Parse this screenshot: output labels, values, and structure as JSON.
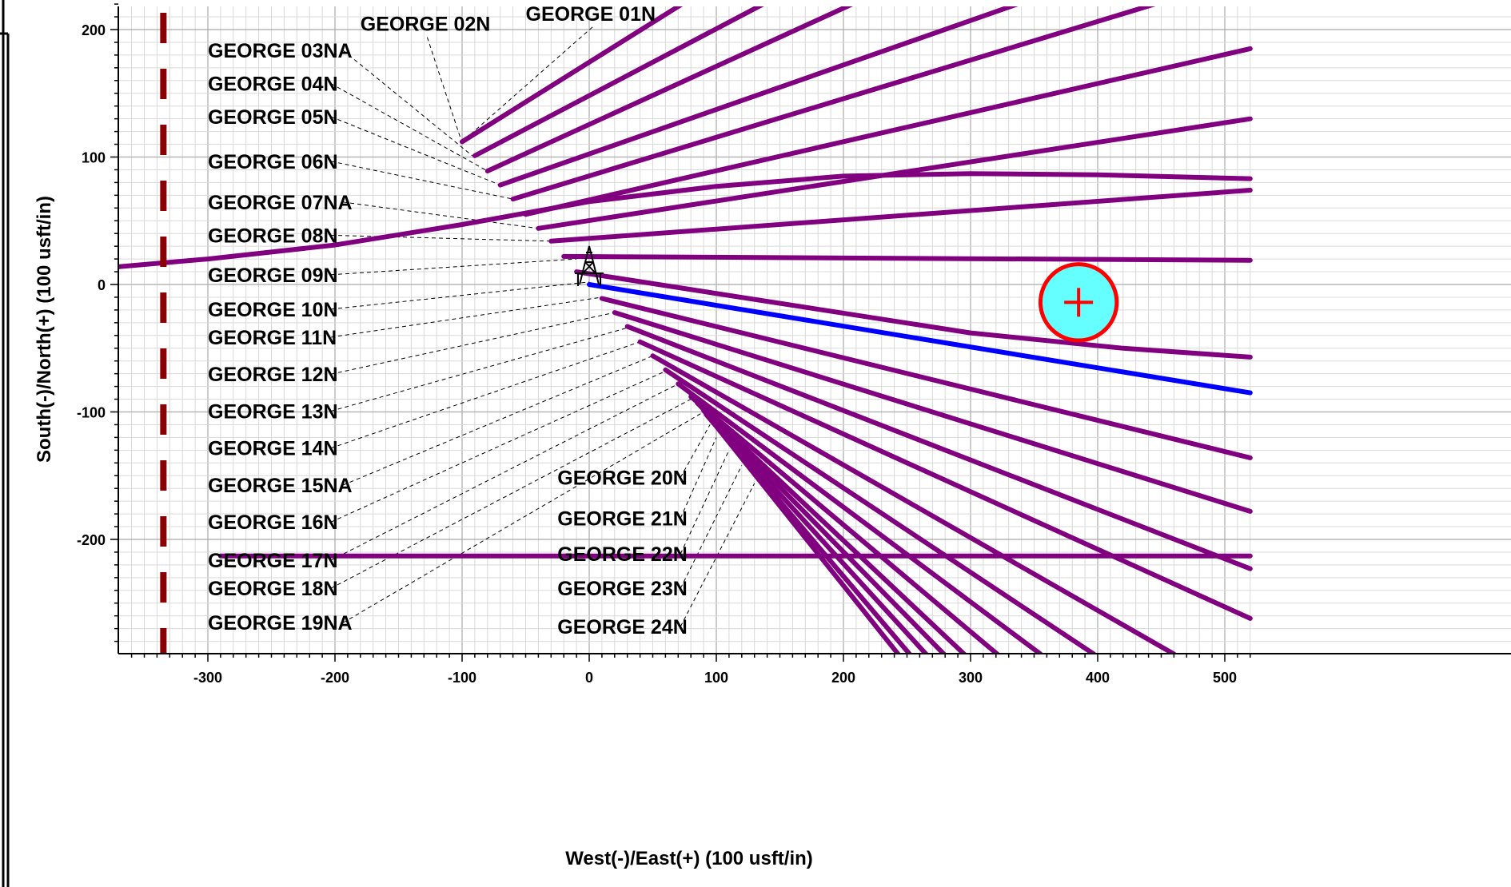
{
  "chart_data": {
    "type": "line",
    "title": "",
    "xlabel": "West(-)/East(+) (100 usft/in)",
    "ylabel": "South(-)/North(+) (100 usft/in)",
    "xlim": [
      -370,
      520
    ],
    "ylim": [
      -290,
      220
    ],
    "x_ticks": [
      "-300",
      "-200",
      "-100",
      "0",
      "100",
      "200",
      "300",
      "400",
      "500"
    ],
    "y_ticks": [
      "200",
      "100",
      "0",
      "-100",
      "-200"
    ],
    "grid": true,
    "colors": {
      "offset_well": "#800080",
      "subject_well": "#0000ff",
      "vertical_well": "#8b0000",
      "target_fill": "#66ffff",
      "target_stroke": "#ff0000"
    },
    "icons": {
      "surface_location": "well-derrick-icon",
      "target": "target-circle-icon"
    },
    "subject_well": {
      "points": [
        [
          0,
          0
        ],
        [
          520,
          -85
        ]
      ]
    },
    "target": {
      "x": 385,
      "y": -14,
      "radius": 30
    },
    "vertical_wells_x": -335,
    "wells": [
      {
        "label": "GEORGE 01N",
        "label_xy": [
          -50,
          207
        ],
        "leader_end": [
          -100,
          112
        ]
      },
      {
        "label": "GEORGE 02N",
        "label_xy": [
          -180,
          199
        ],
        "leader_end": [
          -100,
          111
        ]
      },
      {
        "label": "GEORGE 03NA",
        "label_xy": [
          -300,
          178
        ],
        "leader_end": [
          -92,
          101
        ]
      },
      {
        "label": "GEORGE 04N",
        "label_xy": [
          -300,
          152
        ],
        "leader_end": [
          -80,
          89
        ]
      },
      {
        "label": "GEORGE 05N",
        "label_xy": [
          -300,
          126
        ],
        "leader_end": [
          -70,
          78
        ]
      },
      {
        "label": "GEORGE 06N",
        "label_xy": [
          -300,
          91
        ],
        "leader_end": [
          -60,
          67
        ]
      },
      {
        "label": "GEORGE 07NA",
        "label_xy": [
          -300,
          59
        ],
        "leader_end": [
          -40,
          44
        ]
      },
      {
        "label": "GEORGE 08N",
        "label_xy": [
          -300,
          33
        ],
        "leader_end": [
          -30,
          34
        ]
      },
      {
        "label": "GEORGE 09N",
        "label_xy": [
          -300,
          2
        ],
        "leader_end": [
          -10,
          20
        ]
      },
      {
        "label": "GEORGE 10N",
        "label_xy": [
          -300,
          -25
        ],
        "leader_end": [
          0,
          2
        ]
      },
      {
        "label": "GEORGE 11N",
        "label_xy": [
          -300,
          -47
        ],
        "leader_end": [
          10,
          -10
        ]
      },
      {
        "label": "GEORGE 12N",
        "label_xy": [
          -300,
          -76
        ],
        "leader_end": [
          20,
          -22
        ]
      },
      {
        "label": "GEORGE 13N",
        "label_xy": [
          -300,
          -105
        ],
        "leader_end": [
          30,
          -34
        ]
      },
      {
        "label": "GEORGE 14N",
        "label_xy": [
          -300,
          -134
        ],
        "leader_end": [
          40,
          -45
        ]
      },
      {
        "label": "GEORGE 15NA",
        "label_xy": [
          -300,
          -163
        ],
        "leader_end": [
          50,
          -56
        ]
      },
      {
        "label": "GEORGE 16N",
        "label_xy": [
          -300,
          -192
        ],
        "leader_end": [
          60,
          -68
        ]
      },
      {
        "label": "GEORGE 17N",
        "label_xy": [
          -300,
          -222
        ],
        "leader_end": [
          70,
          -78
        ]
      },
      {
        "label": "GEORGE 18N",
        "label_xy": [
          -300,
          -244
        ],
        "leader_end": [
          80,
          -90
        ]
      },
      {
        "label": "GEORGE 19NA",
        "label_xy": [
          -300,
          -271
        ],
        "leader_end": [
          90,
          -100
        ]
      },
      {
        "label": "GEORGE 20N",
        "label_xy": [
          -25,
          -157
        ],
        "leader_end": [
          95,
          -110
        ]
      },
      {
        "label": "GEORGE 21N",
        "label_xy": [
          -25,
          -189
        ],
        "leader_end": [
          100,
          -120
        ]
      },
      {
        "label": "GEORGE 22N",
        "label_xy": [
          -25,
          -217
        ],
        "leader_end": [
          110,
          -130
        ]
      },
      {
        "label": "GEORGE 23N",
        "label_xy": [
          -25,
          -244
        ],
        "leader_end": [
          120,
          -142
        ]
      },
      {
        "label": "GEORGE 24N",
        "label_xy": [
          -25,
          -274
        ],
        "leader_end": [
          130,
          -156
        ]
      }
    ],
    "series": [
      {
        "points": [
          [
            -100,
            112
          ],
          [
            73,
            220
          ]
        ]
      },
      {
        "points": [
          [
            -90,
            101
          ],
          [
            137,
            220
          ]
        ]
      },
      {
        "points": [
          [
            -80,
            89
          ],
          [
            207,
            220
          ]
        ]
      },
      {
        "points": [
          [
            -70,
            78
          ],
          [
            337,
            220
          ]
        ]
      },
      {
        "points": [
          [
            -60,
            67
          ],
          [
            445,
            220
          ]
        ]
      },
      {
        "points": [
          [
            -50,
            55
          ],
          [
            520,
            185
          ]
        ]
      },
      {
        "points": [
          [
            -40,
            44
          ],
          [
            520,
            130
          ]
        ]
      },
      {
        "points": [
          [
            -370,
            14
          ],
          [
            -300,
            20
          ],
          [
            -200,
            31
          ],
          [
            -100,
            47
          ],
          [
            0,
            65
          ],
          [
            100,
            77
          ],
          [
            200,
            85
          ],
          [
            300,
            87
          ],
          [
            400,
            86
          ],
          [
            520,
            83
          ]
        ]
      },
      {
        "points": [
          [
            -30,
            34
          ],
          [
            520,
            74
          ]
        ]
      },
      {
        "points": [
          [
            -20,
            22
          ],
          [
            520,
            19
          ]
        ]
      },
      {
        "points": [
          [
            -10,
            10
          ],
          [
            300,
            -38
          ],
          [
            420,
            -50
          ],
          [
            520,
            -57
          ]
        ]
      },
      {
        "points": [
          [
            10,
            -11
          ],
          [
            520,
            -136
          ]
        ]
      },
      {
        "points": [
          [
            20,
            -22
          ],
          [
            520,
            -178
          ]
        ]
      },
      {
        "points": [
          [
            30,
            -33
          ],
          [
            520,
            -223
          ]
        ]
      },
      {
        "points": [
          [
            40,
            -45
          ],
          [
            520,
            -262
          ]
        ]
      },
      {
        "points": [
          [
            50,
            -56
          ],
          [
            460,
            -290
          ]
        ]
      },
      {
        "points": [
          [
            60,
            -67
          ],
          [
            397,
            -290
          ]
        ]
      },
      {
        "points": [
          [
            70,
            -78
          ],
          [
            355,
            -290
          ]
        ]
      },
      {
        "points": [
          [
            80,
            -88
          ],
          [
            321,
            -290
          ]
        ]
      },
      {
        "points": [
          [
            85,
            -93
          ],
          [
            295,
            -290
          ]
        ]
      },
      {
        "points": [
          [
            88,
            -96
          ],
          [
            279,
            -290
          ]
        ]
      },
      {
        "points": [
          [
            90,
            -99
          ],
          [
            265,
            -290
          ]
        ]
      },
      {
        "points": [
          [
            92,
            -102
          ],
          [
            252,
            -290
          ]
        ]
      },
      {
        "points": [
          [
            95,
            -105
          ],
          [
            243,
            -290
          ]
        ]
      },
      {
        "points": [
          [
            -290,
            -213
          ],
          [
            520,
            -213
          ]
        ]
      }
    ]
  }
}
